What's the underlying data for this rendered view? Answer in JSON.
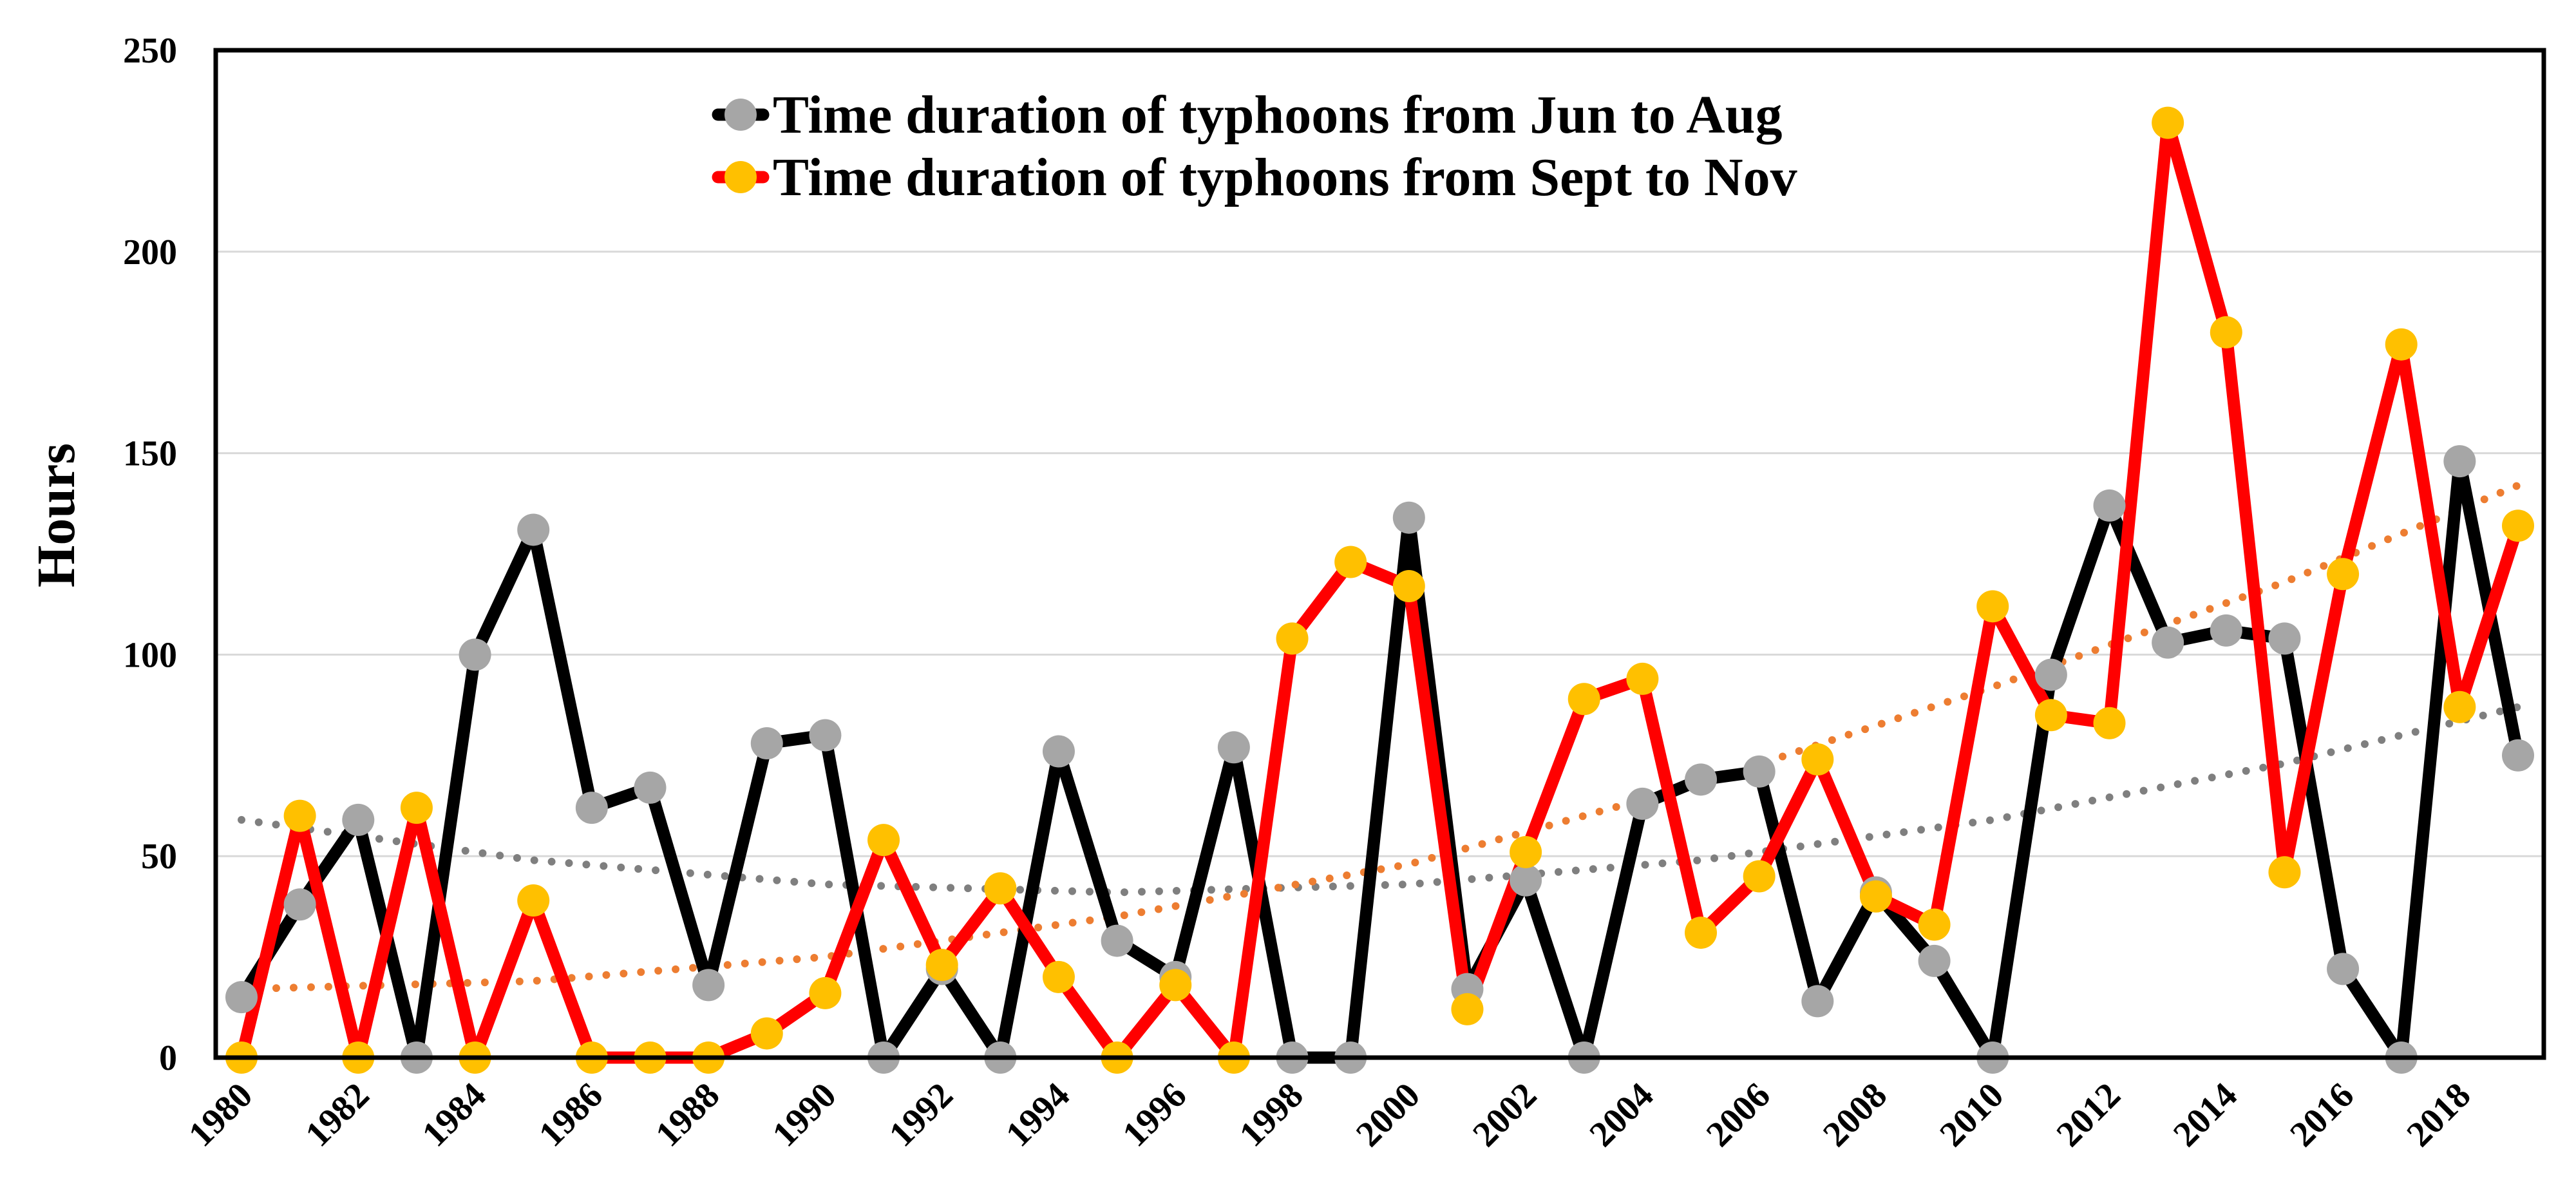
{
  "chart_data": {
    "type": "line",
    "ylabel": "Hours",
    "xlabel": "",
    "ylim": [
      0,
      250
    ],
    "yticks": [
      0,
      50,
      100,
      150,
      200,
      250
    ],
    "xlim": [
      1980,
      2019
    ],
    "xtick_labels": [
      "1980",
      "1982",
      "1984",
      "1986",
      "1988",
      "1990",
      "1992",
      "1994",
      "1996",
      "1998",
      "2000",
      "2002",
      "2004",
      "2006",
      "2008",
      "2010",
      "2012",
      "2014",
      "2016",
      "2018"
    ],
    "grid": "horizontal",
    "legend_position": "top-center",
    "x": [
      1980,
      1981,
      1982,
      1983,
      1984,
      1985,
      1986,
      1987,
      1988,
      1989,
      1990,
      1991,
      1992,
      1993,
      1994,
      1995,
      1996,
      1997,
      1998,
      1999,
      2000,
      2001,
      2002,
      2003,
      2004,
      2005,
      2006,
      2007,
      2008,
      2009,
      2010,
      2011,
      2012,
      2013,
      2014,
      2015,
      2016,
      2017,
      2018,
      2019
    ],
    "series": [
      {
        "name": "Time duration of typhoons from Jun to Aug",
        "line_color": "#000000",
        "marker_color": "#a6a6a6",
        "values": [
          15,
          38,
          59,
          0,
          100,
          131,
          62,
          67,
          18,
          78,
          80,
          0,
          22,
          0,
          76,
          29,
          20,
          77,
          0,
          0,
          134,
          17,
          44,
          0,
          63,
          69,
          71,
          14,
          41,
          24,
          0,
          95,
          137,
          103,
          106,
          104,
          22,
          0,
          148,
          75
        ]
      },
      {
        "name": "Time duration of typhoons from Sept to Nov",
        "line_color": "#ff0000",
        "marker_color": "#ffc000",
        "values": [
          0,
          60,
          0,
          62,
          0,
          39,
          0,
          0,
          0,
          6,
          16,
          54,
          23,
          42,
          20,
          0,
          18,
          0,
          104,
          123,
          117,
          12,
          51,
          89,
          94,
          31,
          45,
          74,
          40,
          33,
          112,
          85,
          83,
          232,
          180,
          46,
          120,
          177,
          87,
          132
        ]
      }
    ],
    "trendlines": [
      {
        "series": "Time duration of typhoons from Jun to Aug",
        "type": "polynomial",
        "style": "dotted",
        "color": "#7f7f7f",
        "points": [
          [
            1980,
            59
          ],
          [
            1985,
            49
          ],
          [
            1990,
            43
          ],
          [
            1995,
            41
          ],
          [
            2000,
            43
          ],
          [
            2005,
            49
          ],
          [
            2010,
            59
          ],
          [
            2015,
            73
          ],
          [
            2019,
            87
          ]
        ]
      },
      {
        "series": "Time duration of typhoons from Sept to Nov",
        "type": "polynomial",
        "style": "dotted",
        "color": "#ed7d31",
        "points": [
          [
            1980,
            17
          ],
          [
            1985,
            19
          ],
          [
            1990,
            25
          ],
          [
            1995,
            35
          ],
          [
            2000,
            48
          ],
          [
            2005,
            68
          ],
          [
            2010,
            92
          ],
          [
            2015,
            118
          ],
          [
            2019,
            142
          ]
        ]
      }
    ]
  }
}
